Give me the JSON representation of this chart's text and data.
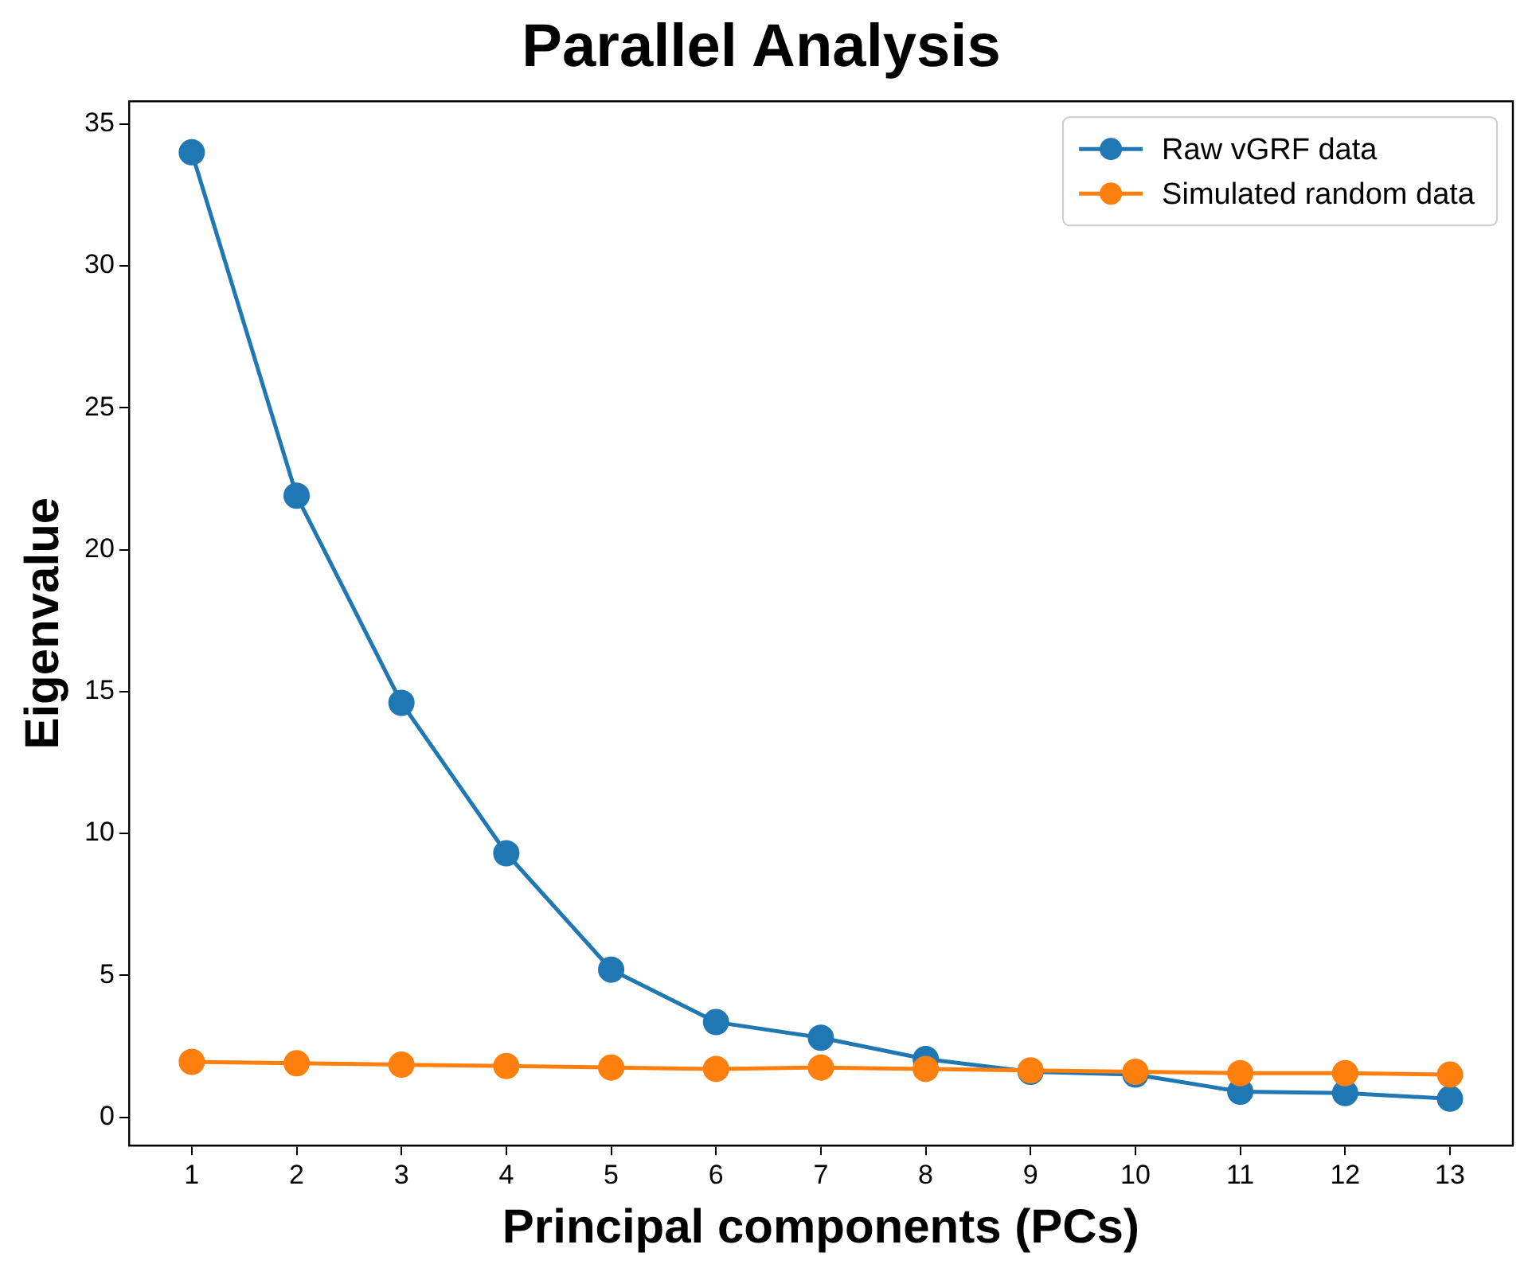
{
  "chart_data": {
    "type": "line",
    "title": "Parallel Analysis",
    "xlabel": "Principal components (PCs)",
    "ylabel": "Eigenvalue",
    "x": [
      1,
      2,
      3,
      4,
      5,
      6,
      7,
      8,
      9,
      10,
      11,
      12,
      13
    ],
    "series": [
      {
        "name": "Raw vGRF data",
        "color": "#1f77b4",
        "values": [
          34.0,
          21.9,
          14.6,
          9.3,
          5.2,
          3.35,
          2.8,
          2.05,
          1.6,
          1.5,
          0.9,
          0.85,
          0.65
        ]
      },
      {
        "name": "Simulated random data",
        "color": "#ff7f0e",
        "values": [
          1.95,
          1.9,
          1.85,
          1.8,
          1.75,
          1.7,
          1.75,
          1.7,
          1.65,
          1.6,
          1.55,
          1.55,
          1.5
        ]
      }
    ],
    "xlim": [
      0.4,
      13.6
    ],
    "xticks": [
      1,
      2,
      3,
      4,
      5,
      6,
      7,
      8,
      9,
      10,
      11,
      12,
      13
    ],
    "ylim": [
      -1,
      35.8
    ],
    "yticks": [
      0,
      5,
      10,
      15,
      20,
      25,
      30,
      35
    ],
    "grid": false,
    "legend": "top right",
    "marker": "circle",
    "line_style": "solid"
  }
}
